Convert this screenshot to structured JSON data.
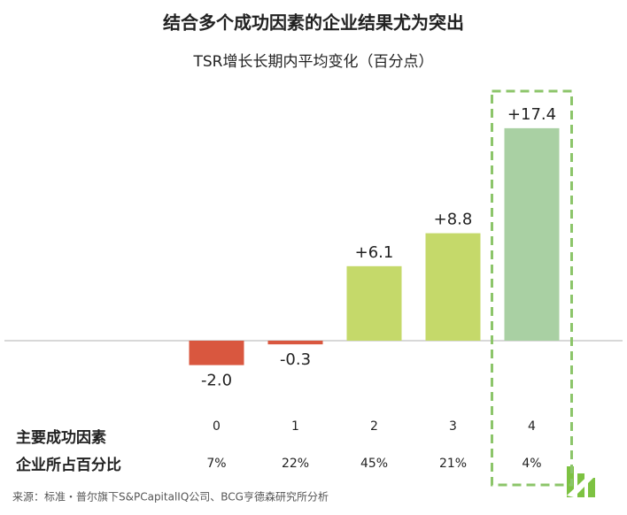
{
  "chart_data": {
    "type": "bar",
    "title": "结合多个成功因素的企业结果尤为突出",
    "subtitle": "TSR增长长期内平均变化（百分点）",
    "categories": [
      "0",
      "1",
      "2",
      "3",
      "4"
    ],
    "values": [
      -2.0,
      -0.3,
      6.1,
      8.8,
      17.4
    ],
    "value_labels": [
      "-2.0",
      "-0.3",
      "+6.1",
      "+8.8",
      "+17.4"
    ],
    "colors": [
      "#d9573f",
      "#d9573f",
      "#c5d96a",
      "#c5d96a",
      "#a9d0a3"
    ],
    "ylim": [
      -5,
      20
    ],
    "highlight": 4,
    "category_row_label": "主要成功因素",
    "share_row_label": "企业所占百分比",
    "shares": [
      "7%",
      "22%",
      "45%",
      "21%",
      "4%"
    ],
    "source": "来源：标准・普尔旗下S&PCapitalIQ公司、BCG亨德森研究所分析"
  }
}
